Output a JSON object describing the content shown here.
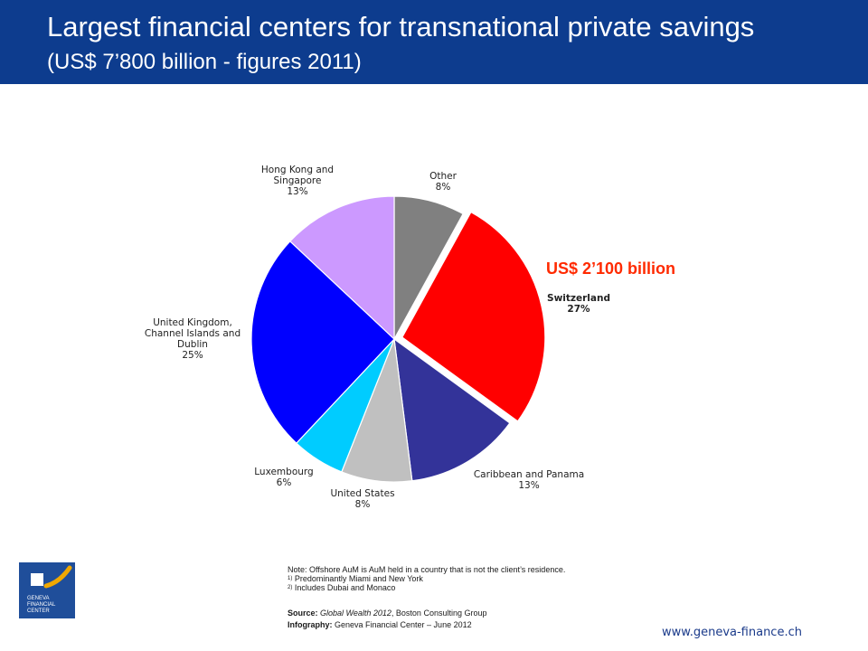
{
  "header": {
    "title": "Largest financial centers for transnational private savings",
    "subtitle": "(US$ 7’800 billion - figures 2011)"
  },
  "callout": "US$ 2’100 billion",
  "notes": {
    "note": "Note: Offshore AuM is AuM held in a country that is not the client’s residence.",
    "n1_mark": "1)",
    "n1": " Predominantly Miami and New York",
    "n2_mark": "2)",
    "n2": " Includes Dubai and Monaco"
  },
  "source": {
    "label": "Source:",
    "title": "Global Wealth 2012",
    "rest": ", Boston Consulting Group",
    "infography_label": "Infography:",
    "infography": " Geneva Financial Center – June 2012"
  },
  "url": "www.geneva-finance.ch",
  "logo": {
    "lines": [
      "GENEVA",
      "FINANCIAL",
      "CENTER"
    ]
  },
  "chart_data": {
    "type": "pie",
    "title": "",
    "start_angle_deg": 0,
    "direction": "clockwise",
    "slices": [
      {
        "label": [
          "Other",
          "8%"
        ],
        "value": 8,
        "color": "#808080",
        "explode": false,
        "bold": false
      },
      {
        "label": [
          "Switzerland",
          "27%"
        ],
        "value": 27,
        "color": "#ff0000",
        "explode": true,
        "bold": true
      },
      {
        "label": [
          "Caribbean and Panama",
          "13%"
        ],
        "value": 13,
        "color": "#333399",
        "explode": false,
        "bold": false
      },
      {
        "label": [
          "United States",
          "8%"
        ],
        "value": 8,
        "color": "#c0c0c0",
        "explode": false,
        "bold": false
      },
      {
        "label": [
          "Luxembourg",
          "6%"
        ],
        "value": 6,
        "color": "#00ccff",
        "explode": false,
        "bold": false
      },
      {
        "label": [
          "United Kingdom,",
          "Channel Islands and",
          "Dublin",
          "25%"
        ],
        "value": 25,
        "color": "#0000ff",
        "explode": false,
        "bold": false
      },
      {
        "label": [
          "Hong Kong and",
          "Singapore",
          "13%"
        ],
        "value": 13,
        "color": "#cc99ff",
        "explode": false,
        "bold": false
      }
    ]
  }
}
